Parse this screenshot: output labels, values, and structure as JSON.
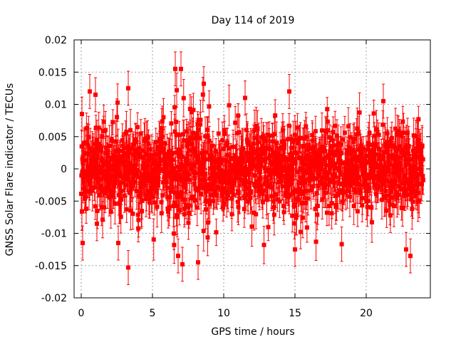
{
  "chart_data": {
    "type": "scatter",
    "title": "Day 114 of 2019",
    "xlabel": "GPS time / hours",
    "ylabel": "GNSS Solar Flare indicator / TECUs",
    "xlim": [
      -0.5,
      24.5
    ],
    "ylim": [
      -0.02,
      0.02
    ],
    "xticks": [
      0,
      5,
      10,
      15,
      20
    ],
    "xtick_labels": [
      "0",
      "5",
      "10",
      "15",
      "20"
    ],
    "yticks": [
      -0.02,
      -0.015,
      -0.01,
      -0.005,
      0,
      0.005,
      0.01,
      0.015,
      0.02
    ],
    "ytick_labels": [
      "-0.02",
      "-0.015",
      "-0.01",
      "-0.005",
      "0",
      "0.005",
      "0.01",
      "0.015",
      "0.02"
    ],
    "grid": true,
    "series": [
      {
        "name": "GNSS Solar Flare indicator",
        "color": "#ff0000",
        "marker": "square",
        "error_bars": true,
        "x_range": [
          0,
          24
        ],
        "n_points": 1440,
        "typical_error": 0.0024,
        "notable_points": [
          {
            "x": 0.05,
            "y": 0.0085
          },
          {
            "x": 0.1,
            "y": -0.0115
          },
          {
            "x": 0.6,
            "y": 0.012
          },
          {
            "x": 1.0,
            "y": 0.0115
          },
          {
            "x": 1.1,
            "y": -0.0085
          },
          {
            "x": 2.6,
            "y": -0.0115
          },
          {
            "x": 3.3,
            "y": 0.0125
          },
          {
            "x": 3.3,
            "y": -0.0153
          },
          {
            "x": 6.6,
            "y": 0.0155
          },
          {
            "x": 6.7,
            "y": 0.0122
          },
          {
            "x": 6.8,
            "y": -0.0135
          },
          {
            "x": 7.0,
            "y": 0.0155
          },
          {
            "x": 7.1,
            "y": -0.0148
          },
          {
            "x": 8.2,
            "y": -0.0145
          },
          {
            "x": 8.6,
            "y": 0.0132
          },
          {
            "x": 11.5,
            "y": 0.011
          },
          {
            "x": 14.6,
            "y": 0.012
          },
          {
            "x": 15.0,
            "y": -0.0125
          },
          {
            "x": 21.2,
            "y": 0.0105
          },
          {
            "x": 22.8,
            "y": -0.0125
          },
          {
            "x": 23.1,
            "y": -0.0135
          }
        ]
      }
    ]
  }
}
